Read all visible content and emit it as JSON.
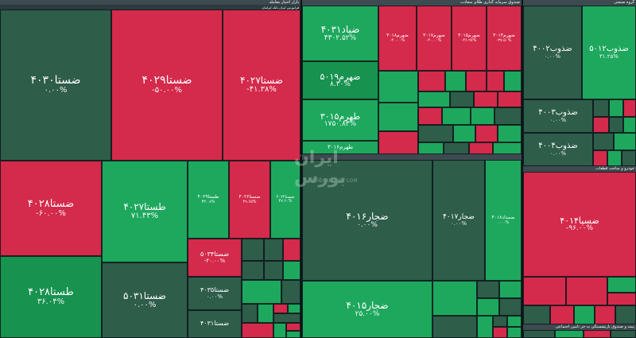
{
  "headers": {
    "market": "بازار اختیار معامله",
    "sub_left": "فرابورس ایران بانک ایرانیان",
    "mid_top": "صندوق سرمایه گذاری طلای سعادت",
    "mid_bottom": "",
    "right_top": "گروه صنعتی",
    "right_mid": "خودرو و ساخت قطعات",
    "right_bottom": "بیمه و صندوق بازنشستگی به جز تامین اجتماعی"
  },
  "watermark": {
    "text": "ایران بورس",
    "url": "iranbourse.com"
  },
  "colors": {
    "up": "#1ea85e",
    "up_alt": "#17924f",
    "flat": "#2e5d4a",
    "down": "#d42a4b"
  },
  "tiles": [
    {
      "id": "t1",
      "name": "ضستا۴۰۳۰",
      "change": "۰.۰۰%"
    },
    {
      "id": "t2",
      "name": "ضستا۴۰۲۹",
      "change": "-۵۰.۰۰%"
    },
    {
      "id": "t3",
      "name": "ضستا۴۰۲۷",
      "change": "-۴۱.۳۸%"
    },
    {
      "id": "t4",
      "name": "ضستا۴۰۲۸",
      "change": "-۶۰.۰۰%"
    },
    {
      "id": "t5",
      "name": "طستا۴۰۲۸",
      "change": "۳۶.۰۴%"
    },
    {
      "id": "t6",
      "name": "طستا۴۰۲۷",
      "change": "۷۱.۴۳%"
    },
    {
      "id": "t7",
      "name": "ضستا۵۰۳۱",
      "change": "۰.۰۰%"
    },
    {
      "id": "t8",
      "name": "طستا۴۰۲۹",
      "change": "۳۳.۰۸%"
    },
    {
      "id": "t9",
      "name": "ضستا۴۰۲۶",
      "change": "۴۹.۶۵%"
    },
    {
      "id": "t10",
      "name": "ضستا۴۰۲۴",
      "change": "۴۷.۶۰%"
    },
    {
      "id": "t11",
      "name": "ضستا۵۰۳۴",
      "change": "-۴۰.۰۰%"
    },
    {
      "id": "t12",
      "name": "ضستا۴۰۳۵",
      "change": "۰.۰۰%"
    },
    {
      "id": "t13",
      "name": "ضستا۴۰۳۱",
      "change": "۰.۰۰%"
    },
    {
      "id": "t14",
      "name": "ضیاد۴۰۳۱",
      "change": "۴۳۰۲.۵۲%"
    },
    {
      "id": "t15",
      "name": "ضهرم۵۰۱۹",
      "change": "۸.۳۰%"
    },
    {
      "id": "t16",
      "name": "طهرم۳۰۱۵",
      "change": "۱۷۵۰.۸۳%"
    },
    {
      "id": "t17",
      "name": "طهرم۳۰۱۶",
      "change": "۷۷.۶۳%"
    },
    {
      "id": "t18",
      "name": "ضهرم۳۰۱۸",
      "change": "-۴۰.۰۰%"
    },
    {
      "id": "t19",
      "name": "ضهرم۳۰۱۷",
      "change": "-۴۰.۰۰%"
    },
    {
      "id": "t20",
      "name": "ضهرم۳۰۱۵",
      "change": "-۴۶.۹۷%"
    },
    {
      "id": "t21",
      "name": "ضهرم۳۰۱۴",
      "change": "-۳۷.۵۰%"
    },
    {
      "id": "t22",
      "name": "ضجار۴۰۱۶",
      "change": "۰.۰۰%"
    },
    {
      "id": "t23",
      "name": "ضجار۴۰۱۷",
      "change": "۰.۰۰%"
    },
    {
      "id": "t24",
      "name": "ضجار۴۰۱۵",
      "change": "۲۵.۰۰%"
    },
    {
      "id": "t25",
      "name": "ضمداد۴۰۱۸",
      "change": "۰.۰۰%"
    },
    {
      "id": "t26",
      "name": "ضذوب۴۰۰۲",
      "change": "۰.۰۰%"
    },
    {
      "id": "t27",
      "name": "ضذوب۵۰۱۲",
      "change": "۳۱.۲۵%"
    },
    {
      "id": "t28",
      "name": "ضذوب۴۰۰۳",
      "change": "۰.۰۰%"
    },
    {
      "id": "t29",
      "name": "ضذوب۴۰۰۴",
      "change": "۰.۰۰%"
    },
    {
      "id": "t30",
      "name": "ضسپا۴۰۱۴",
      "change": "-۹۶.۰۰%"
    }
  ]
}
